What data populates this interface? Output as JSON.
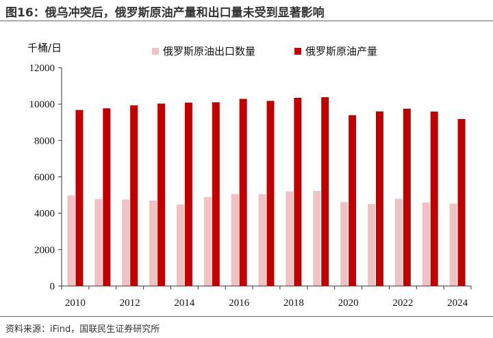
{
  "figure": {
    "title": "图16：俄乌冲突后，俄罗斯原油产量和出口量未受到显著影响",
    "source": "资料来源：iFind，国联民生证券研究所"
  },
  "chart_data": {
    "type": "bar",
    "title": "",
    "ylabel": "千桶/日",
    "xlabel": "",
    "ylim": [
      0,
      12000
    ],
    "yticks": [
      0,
      2000,
      4000,
      6000,
      8000,
      10000,
      12000
    ],
    "categories": [
      "2010",
      "2011",
      "2012",
      "2013",
      "2014",
      "2015",
      "2016",
      "2017",
      "2018",
      "2019",
      "2020",
      "2021",
      "2022",
      "2023",
      "2024"
    ],
    "xtick_labels": [
      "2010",
      "2012",
      "2014",
      "2016",
      "2018",
      "2020",
      "2022",
      "2024"
    ],
    "series": [
      {
        "name": "俄罗斯原油出口数量",
        "color": "#efc3c3",
        "values": [
          4980,
          4780,
          4750,
          4700,
          4480,
          4890,
          5060,
          5050,
          5200,
          5230,
          4620,
          4510,
          4790,
          4590,
          4530
        ]
      },
      {
        "name": "俄罗斯原油产量",
        "color": "#c00000",
        "values": [
          9680,
          9770,
          9930,
          10030,
          10080,
          10100,
          10290,
          10180,
          10350,
          10380,
          9390,
          9600,
          9750,
          9590,
          9180
        ]
      }
    ],
    "legend_position": "top",
    "grid": false
  }
}
